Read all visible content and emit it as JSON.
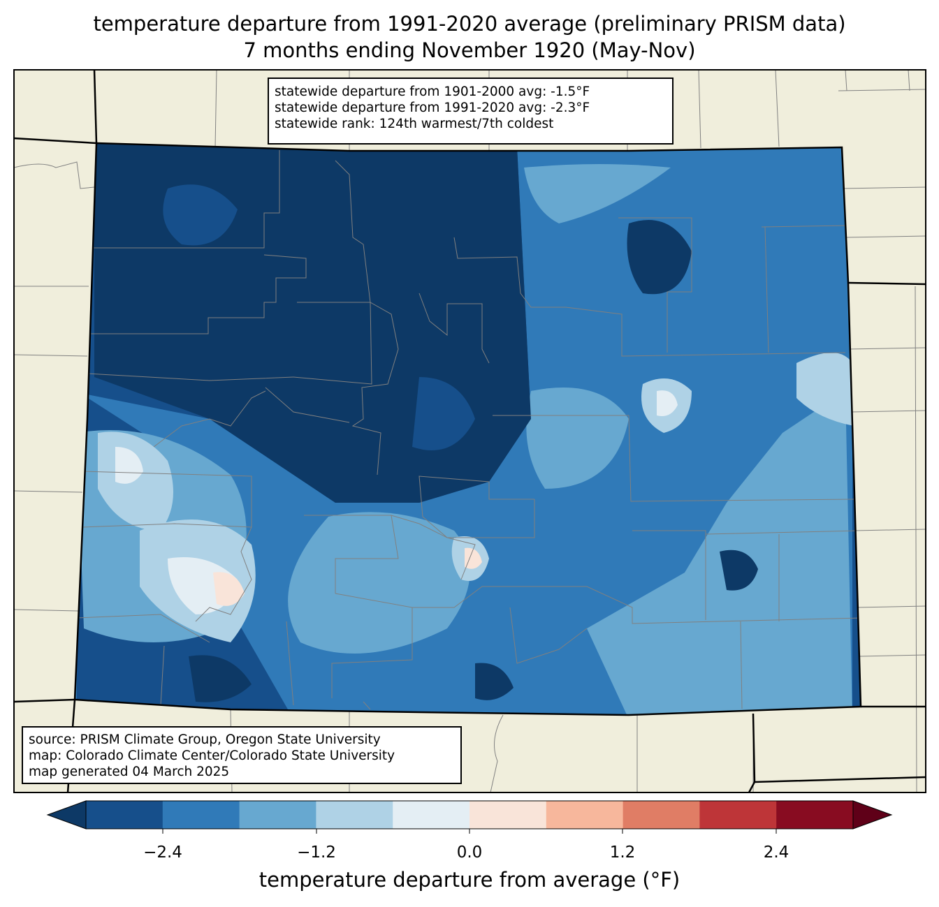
{
  "title": {
    "line1": "temperature departure from 1991-2020 average (preliminary PRISM data)",
    "line2": "7 months ending November 1920 (May-Nov)"
  },
  "stats": {
    "line1": "statewide departure from 1901-2000 avg: -1.5°F",
    "line2": "statewide departure from 1991-2020 avg: -2.3°F",
    "line3": "statewide rank: 124th warmest/7th coldest"
  },
  "source": {
    "line1": "source: PRISM Climate Group, Oregon State University",
    "line2": "map: Colorado Climate Center/Colorado State University",
    "line3": "map generated 04 March 2025"
  },
  "colorbar": {
    "label": "temperature departure from average (°F)",
    "ticks": [
      "−2.4",
      "−1.2",
      "0.0",
      "1.2",
      "2.4"
    ],
    "bin_colors": [
      "#164f8b",
      "#307ab8",
      "#67a8d0",
      "#afd2e6",
      "#e4eef4",
      "#f9e4d9",
      "#f7b79c",
      "#e07d65",
      "#be3538",
      "#880c21"
    ],
    "under_color": "#0d3966",
    "over_color": "#5f0018"
  },
  "colors": {
    "background": "#f0eedc",
    "state_border": "#000000",
    "county_line": "#808080"
  }
}
